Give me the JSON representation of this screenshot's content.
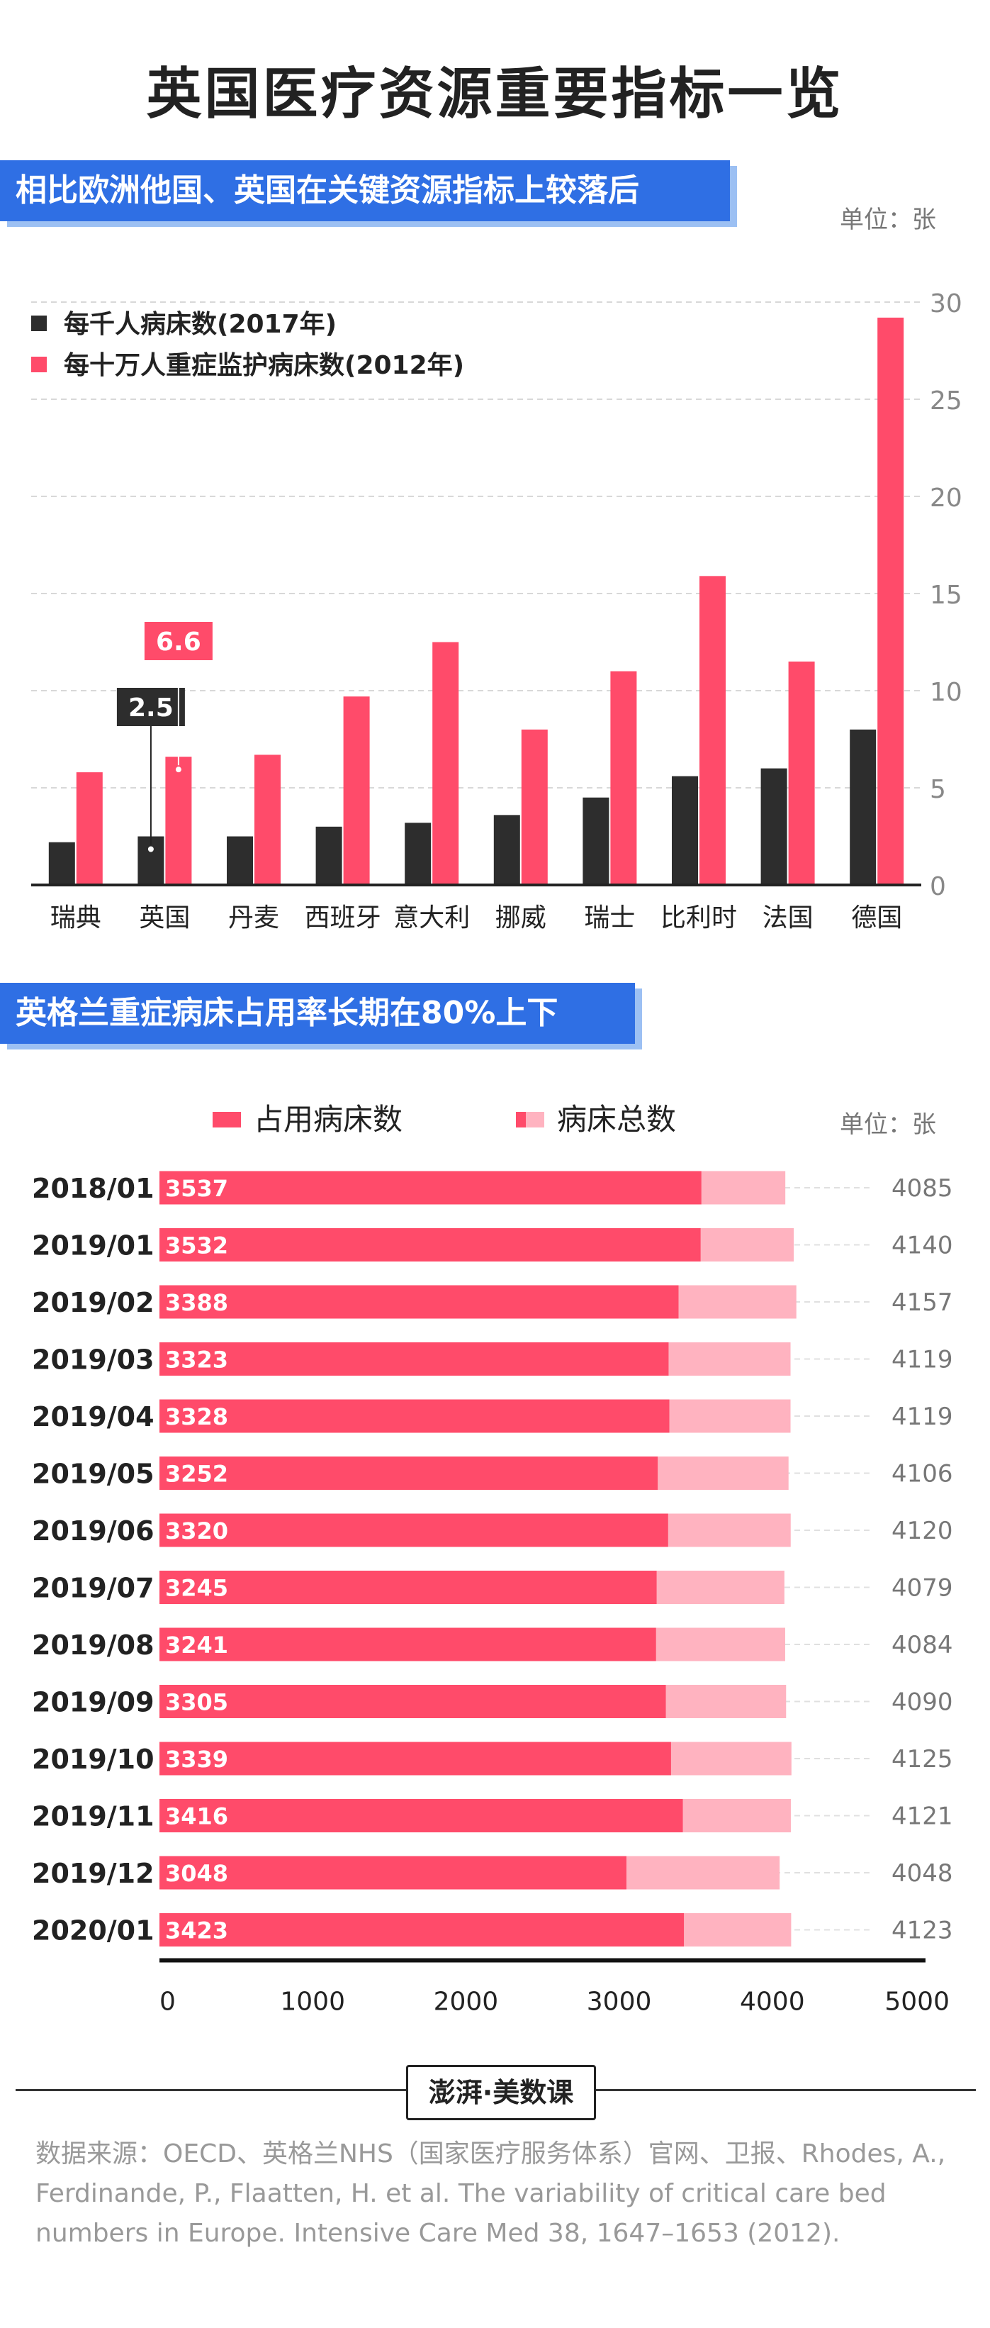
{
  "title": "英国医疗资源重要指标一览",
  "section1": {
    "banner": "相比欧洲他国、英国在关键资源指标上较落后",
    "unit": "单位：张"
  },
  "section2": {
    "banner": "英格兰重症病床占用率长期在80%上下",
    "unit": "单位：张"
  },
  "colors": {
    "dark": "#2d2d2d",
    "red": "#ff4b6a",
    "pink": "#ffb3c0",
    "blue": "#2f6fe4"
  },
  "chart_data": [
    {
      "type": "bar",
      "categories": [
        "瑞典",
        "英国",
        "丹麦",
        "西班牙",
        "意大利",
        "挪威",
        "瑞士",
        "比利时",
        "法国",
        "德国"
      ],
      "series": [
        {
          "name": "每千人病床数(2017年)",
          "values": [
            2.2,
            2.5,
            2.5,
            3.0,
            3.2,
            3.6,
            4.5,
            5.6,
            6.0,
            8.0
          ]
        },
        {
          "name": "每十万人重症监护病床数(2012年)",
          "values": [
            5.8,
            6.6,
            6.7,
            9.7,
            12.5,
            8.0,
            11.0,
            15.9,
            11.5,
            29.2
          ]
        }
      ],
      "ylim": [
        0,
        30
      ],
      "yticks": [
        "0",
        "5",
        "10",
        "15",
        "20",
        "25",
        "30"
      ],
      "grid": true,
      "legend": "top-left",
      "annotations": [
        {
          "category": "英国",
          "series": 0,
          "text": "2.5"
        },
        {
          "category": "英国",
          "series": 1,
          "text": "6.6"
        }
      ]
    },
    {
      "type": "bar",
      "orientation": "horizontal",
      "stacked": "overlay",
      "categories": [
        "2018/01",
        "2019/01",
        "2019/02",
        "2019/03",
        "2019/04",
        "2019/05",
        "2019/06",
        "2019/07",
        "2019/08",
        "2019/09",
        "2019/10",
        "2019/11",
        "2019/12",
        "2020/01"
      ],
      "series": [
        {
          "name": "占用病床数",
          "values": [
            3537,
            3532,
            3388,
            3323,
            3328,
            3252,
            3320,
            3245,
            3241,
            3305,
            3339,
            3416,
            3048,
            3423
          ]
        },
        {
          "name": "病床总数",
          "values": [
            4085,
            4140,
            4157,
            4119,
            4119,
            4106,
            4120,
            4079,
            4084,
            4090,
            4125,
            4121,
            4048,
            4123
          ]
        }
      ],
      "xlim": [
        0,
        5000
      ],
      "xticks": [
        "0",
        "1000",
        "2000",
        "3000",
        "4000",
        "5000"
      ],
      "grid": true,
      "legend": "top"
    }
  ],
  "footer": {
    "logo": "澎湃·美数课",
    "source": "数据来源：OECD、英格兰NHS（国家医疗服务体系）官网、卫报、Rhodes, A., Ferdinande, P., Flaatten, H. et al. The variability of critical care bed numbers in Europe. Intensive Care Med 38, 1647–1653 (2012)."
  }
}
